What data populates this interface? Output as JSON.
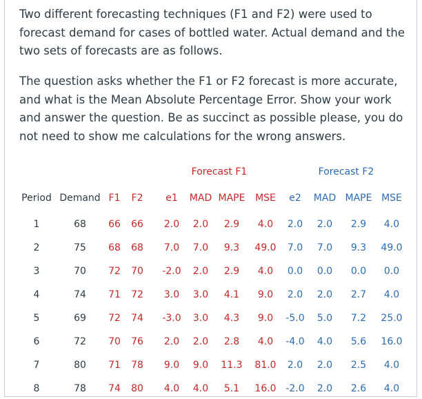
{
  "paragraphs": [
    "Two different forecasting techniques (F1 and F2) were used to forecast demand for cases of bottled water.  Actual demand and the two sets of forecasts are as follows.",
    "The question asks whether the F1 or F2 forecast is more accurate, and what is the Mean Absolute Percentage Error.  Show your work and answer the question.  Be as succinct as possible please, you do not need to show me calculations for the wrong answers."
  ],
  "table": {
    "group_headers": [
      "Forecast F1",
      "Forecast F2"
    ],
    "columns": [
      "Period",
      "Demand",
      "F1",
      "F2",
      "e1",
      "MAD",
      "MAPE",
      "MSE",
      "e2",
      "MAD",
      "MAPE",
      "MSE"
    ],
    "rows": [
      [
        "1",
        "68",
        "66",
        "66",
        "2.0",
        "2.0",
        "2.9",
        "4.0",
        "2.0",
        "2.0",
        "2.9",
        "4.0"
      ],
      [
        "2",
        "75",
        "68",
        "68",
        "7.0",
        "7.0",
        "9.3",
        "49.0",
        "7.0",
        "7.0",
        "9.3",
        "49.0"
      ],
      [
        "3",
        "70",
        "72",
        "70",
        "-2.0",
        "2.0",
        "2.9",
        "4.0",
        "0.0",
        "0.0",
        "0.0",
        "0.0"
      ],
      [
        "4",
        "74",
        "71",
        "72",
        "3.0",
        "3.0",
        "4.1",
        "9.0",
        "2.0",
        "2.0",
        "2.7",
        "4.0"
      ],
      [
        "5",
        "69",
        "72",
        "74",
        "-3.0",
        "3.0",
        "4.3",
        "9.0",
        "-5.0",
        "5.0",
        "7.2",
        "25.0"
      ],
      [
        "6",
        "72",
        "70",
        "76",
        "2.0",
        "2.0",
        "2.8",
        "4.0",
        "-4.0",
        "4.0",
        "5.6",
        "16.0"
      ],
      [
        "7",
        "80",
        "71",
        "78",
        "9.0",
        "9.0",
        "11.3",
        "81.0",
        "2.0",
        "2.0",
        "2.5",
        "4.0"
      ],
      [
        "8",
        "78",
        "74",
        "80",
        "4.0",
        "4.0",
        "5.1",
        "16.0",
        "-2.0",
        "2.0",
        "2.6",
        "4.0"
      ]
    ]
  },
  "colors": {
    "text": "#2d3b45",
    "forecast_f1": "#c62828",
    "forecast_f2": "#2b6cb5",
    "border": "#c7cdd1"
  }
}
